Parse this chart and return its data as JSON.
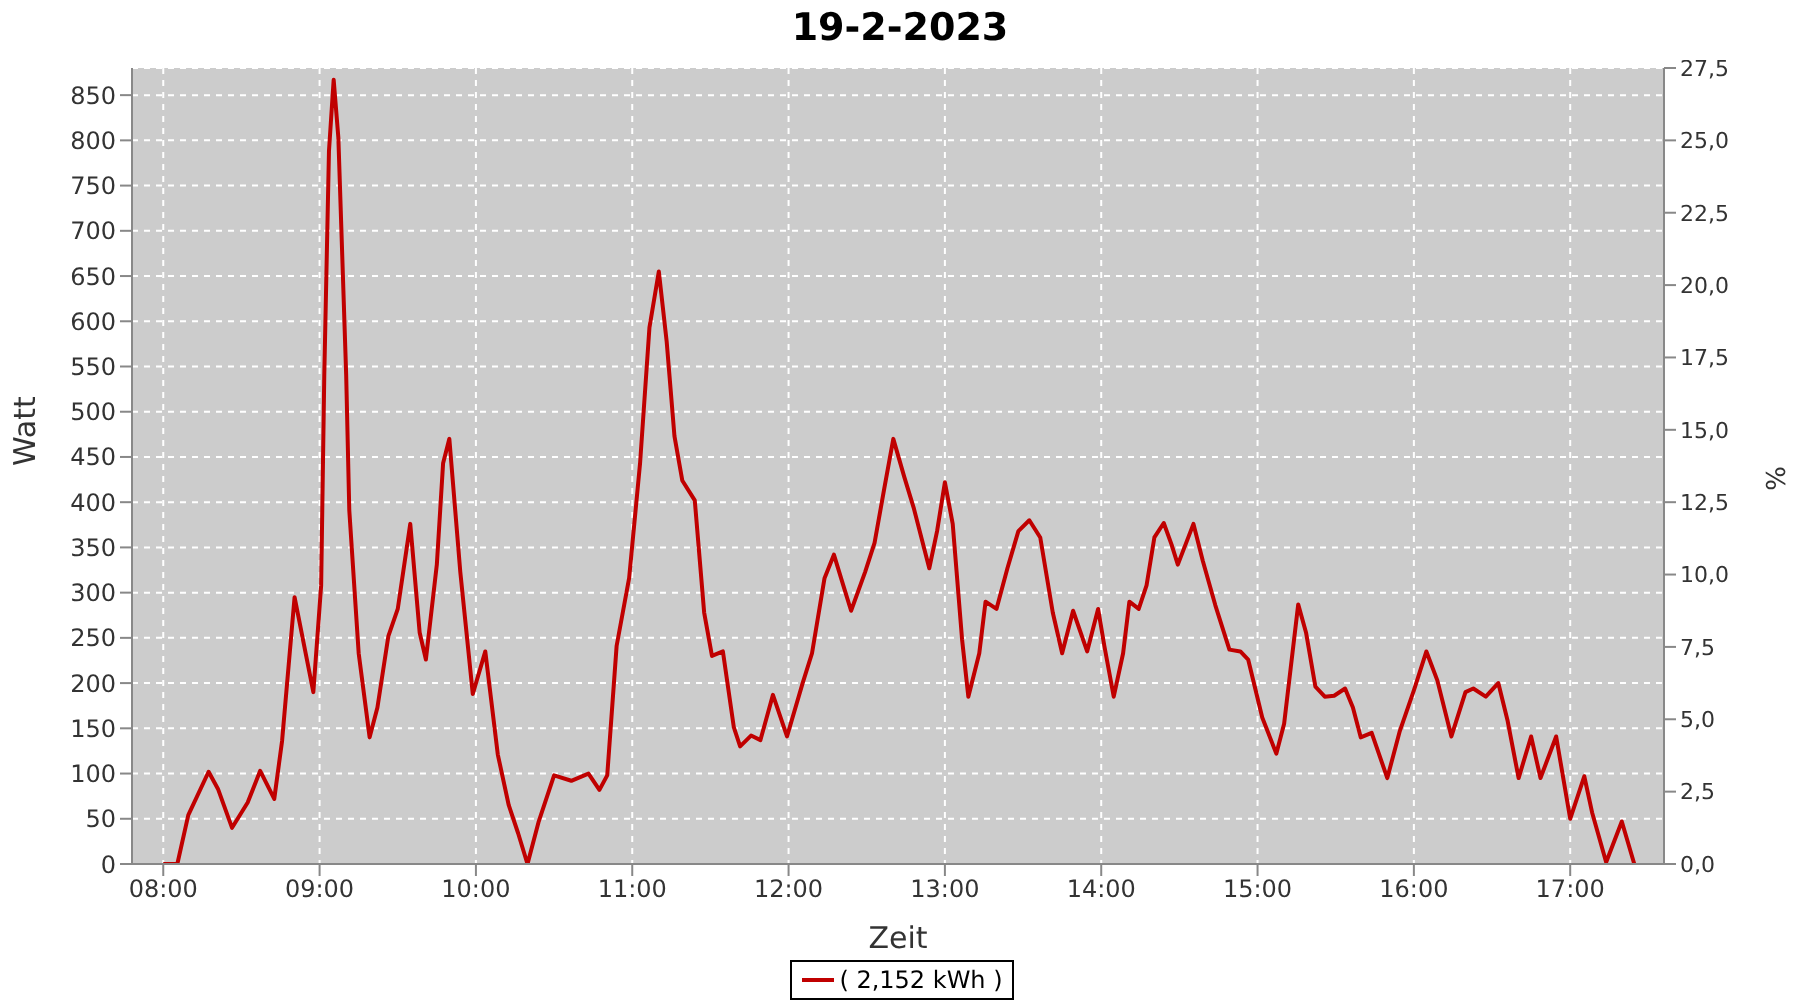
{
  "chart_data": {
    "type": "line",
    "title": "19-2-2023",
    "xlabel": "Zeit",
    "ylabel": "Watt",
    "y2label": "%",
    "x": [
      8.0,
      8.09,
      8.16,
      8.29,
      8.35,
      8.44,
      8.54,
      8.62,
      8.71,
      8.76,
      8.84,
      8.96,
      9.01,
      9.03,
      9.06,
      9.09,
      9.12,
      9.17,
      9.19,
      9.25,
      9.32,
      9.37,
      9.44,
      9.5,
      9.58,
      9.64,
      9.68,
      9.75,
      9.79,
      9.83,
      9.9,
      9.98,
      10.06,
      10.14,
      10.21,
      10.27,
      10.33,
      10.4,
      10.5,
      10.61,
      10.72,
      10.79,
      10.84,
      10.9,
      10.98,
      11.05,
      11.11,
      11.17,
      11.22,
      11.27,
      11.32,
      11.4,
      11.46,
      11.51,
      11.58,
      11.65,
      11.69,
      11.76,
      11.82,
      11.9,
      11.99,
      12.09,
      12.15,
      12.23,
      12.29,
      12.35,
      12.4,
      12.49,
      12.55,
      12.61,
      12.67,
      12.74,
      12.8,
      12.9,
      12.95,
      13.0,
      13.05,
      13.11,
      13.15,
      13.22,
      13.26,
      13.33,
      13.4,
      13.47,
      13.54,
      13.61,
      13.69,
      13.75,
      13.82,
      13.91,
      13.98,
      14.02,
      14.08,
      14.14,
      14.18,
      14.24,
      14.29,
      14.34,
      14.4,
      14.45,
      14.49,
      14.59,
      14.65,
      14.73,
      14.82,
      14.89,
      14.94,
      15.03,
      15.12,
      15.17,
      15.26,
      15.31,
      15.37,
      15.43,
      15.49,
      15.56,
      15.61,
      15.66,
      15.73,
      15.83,
      15.91,
      16.0,
      16.08,
      16.15,
      16.24,
      16.33,
      16.38,
      16.46,
      16.54,
      16.6,
      16.67,
      16.75,
      16.81,
      16.91,
      17.0,
      17.09,
      17.14,
      17.23,
      17.33,
      17.41
    ],
    "series": [
      {
        "name": "( 2,152 kWh )",
        "color": "#c00000",
        "values": [
          0,
          0,
          54,
          102,
          83,
          40,
          68,
          103,
          72,
          136,
          295,
          190,
          308,
          541,
          788,
          867,
          803,
          541,
          391,
          233,
          140,
          173,
          252,
          282,
          376,
          256,
          226,
          331,
          443,
          470,
          323,
          188,
          235,
          121,
          65,
          34,
          0,
          46,
          98,
          92,
          100,
          82,
          98,
          241,
          316,
          443,
          593,
          655,
          578,
          473,
          424,
          402,
          278,
          230,
          235,
          151,
          130,
          142,
          137,
          187,
          141,
          200,
          233,
          316,
          342,
          308,
          280,
          323,
          355,
          413,
          470,
          428,
          394,
          327,
          368,
          422,
          376,
          248,
          185,
          233,
          290,
          282,
          327,
          368,
          380,
          361,
          278,
          233,
          280,
          235,
          282,
          241,
          185,
          233,
          290,
          282,
          308,
          361,
          377,
          353,
          331,
          376,
          335,
          286,
          237,
          235,
          226,
          162,
          122,
          155,
          287,
          256,
          196,
          185,
          186,
          194,
          173,
          140,
          145,
          95,
          147,
          192,
          235,
          203,
          141,
          190,
          194,
          185,
          200,
          158,
          95,
          141,
          95,
          141,
          50,
          97,
          57,
          2,
          47,
          0
        ]
      }
    ],
    "xlim": [
      7.8,
      17.6
    ],
    "xticks": [
      {
        "value": 8,
        "label": "08:00"
      },
      {
        "value": 9,
        "label": "09:00"
      },
      {
        "value": 10,
        "label": "10:00"
      },
      {
        "value": 11,
        "label": "11:00"
      },
      {
        "value": 12,
        "label": "12:00"
      },
      {
        "value": 13,
        "label": "13:00"
      },
      {
        "value": 14,
        "label": "14:00"
      },
      {
        "value": 15,
        "label": "15:00"
      },
      {
        "value": 16,
        "label": "16:00"
      },
      {
        "value": 17,
        "label": "17:00"
      }
    ],
    "ylim": [
      0,
      880
    ],
    "yticks": [
      0,
      50,
      100,
      150,
      200,
      250,
      300,
      350,
      400,
      450,
      500,
      550,
      600,
      650,
      700,
      750,
      800,
      850
    ],
    "y2lim": [
      0,
      27.5
    ],
    "y2ticks": [
      {
        "value": 0,
        "label": "0,0"
      },
      {
        "value": 2.5,
        "label": "2,5"
      },
      {
        "value": 5,
        "label": "5,0"
      },
      {
        "value": 7.5,
        "label": "7,5"
      },
      {
        "value": 10,
        "label": "10,0"
      },
      {
        "value": 12.5,
        "label": "12,5"
      },
      {
        "value": 15,
        "label": "15,0"
      },
      {
        "value": 17.5,
        "label": "17,5"
      },
      {
        "value": 20,
        "label": "20,0"
      },
      {
        "value": 22.5,
        "label": "22,5"
      },
      {
        "value": 25,
        "label": "25,0"
      },
      {
        "value": 27.5,
        "label": "27,5"
      }
    ],
    "grid": true,
    "legend": "bottom"
  }
}
